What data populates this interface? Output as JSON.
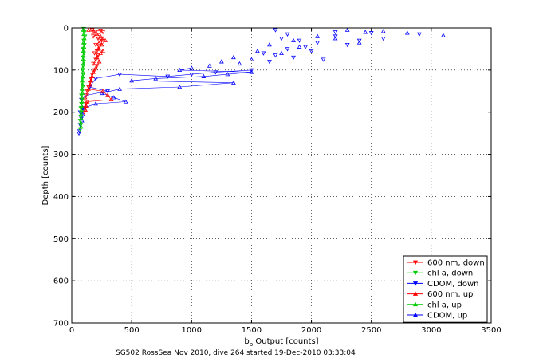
{
  "chart_data": {
    "type": "scatter",
    "xlabel": "b",
    "xlabel_sub": "b",
    "xlabel_rest": " Output [counts]",
    "ylabel": "Depth [counts]",
    "xlim": [
      0,
      3500
    ],
    "ylim": [
      0,
      700
    ],
    "y_reversed": true,
    "grid": true,
    "legend_position": "bottom-right",
    "x_ticks": [
      "0",
      "500",
      "1000",
      "1500",
      "2000",
      "2500",
      "3000",
      "3500"
    ],
    "y_ticks": [
      "0",
      "100",
      "200",
      "300",
      "400",
      "500",
      "600",
      "700"
    ],
    "footer": "SG502 RossSea Nov 2010, dive 264 started 19-Dec-2010 03:33:04",
    "series": [
      {
        "name": "600 nm, down",
        "color": "#ff0000",
        "marker": "triangle-down",
        "points": [
          [
            170,
            5
          ],
          [
            200,
            8
          ],
          [
            240,
            6
          ],
          [
            260,
            10
          ],
          [
            180,
            20
          ],
          [
            220,
            25
          ],
          [
            250,
            30
          ],
          [
            200,
            40
          ],
          [
            230,
            45
          ],
          [
            210,
            55
          ],
          [
            190,
            60
          ],
          [
            220,
            65
          ],
          [
            200,
            75
          ],
          [
            180,
            85
          ],
          [
            210,
            90
          ],
          [
            190,
            100
          ],
          [
            170,
            110
          ],
          [
            160,
            120
          ],
          [
            150,
            130
          ],
          [
            140,
            140
          ],
          [
            130,
            150
          ],
          [
            120,
            160
          ],
          [
            110,
            170
          ],
          [
            120,
            180
          ],
          [
            110,
            190
          ],
          [
            105,
            200
          ]
        ]
      },
      {
        "name": "chl a, down",
        "color": "#00cc00",
        "marker": "triangle-down",
        "points": [
          [
            100,
            2
          ],
          [
            105,
            10
          ],
          [
            110,
            20
          ],
          [
            100,
            30
          ],
          [
            105,
            40
          ],
          [
            95,
            50
          ],
          [
            100,
            60
          ],
          [
            95,
            70
          ],
          [
            100,
            80
          ],
          [
            95,
            90
          ],
          [
            90,
            100
          ],
          [
            95,
            110
          ],
          [
            90,
            120
          ],
          [
            85,
            130
          ],
          [
            90,
            140
          ],
          [
            85,
            150
          ],
          [
            80,
            160
          ],
          [
            85,
            170
          ],
          [
            80,
            180
          ],
          [
            75,
            190
          ],
          [
            80,
            200
          ],
          [
            75,
            210
          ],
          [
            70,
            220
          ],
          [
            75,
            230
          ],
          [
            70,
            240
          ]
        ]
      },
      {
        "name": "CDOM, down",
        "color": "#0000ff",
        "marker": "triangle-down",
        "points": [
          [
            1700,
            5
          ],
          [
            1800,
            15
          ],
          [
            2200,
            10
          ],
          [
            2500,
            12
          ],
          [
            2900,
            15
          ],
          [
            1750,
            25
          ],
          [
            1900,
            30
          ],
          [
            2050,
            35
          ],
          [
            2300,
            40
          ],
          [
            1800,
            50
          ],
          [
            2000,
            55
          ],
          [
            1600,
            60
          ],
          [
            1850,
            70
          ],
          [
            2100,
            75
          ],
          [
            1650,
            80
          ],
          [
            2200,
            20
          ],
          [
            2400,
            30
          ],
          [
            2600,
            25
          ],
          [
            1950,
            45
          ],
          [
            1700,
            65
          ],
          [
            1500,
            100
          ],
          [
            1200,
            105
          ],
          [
            1000,
            110
          ],
          [
            800,
            115
          ],
          [
            400,
            110
          ],
          [
            200,
            120
          ],
          [
            150,
            140
          ],
          [
            300,
            150
          ],
          [
            120,
            160
          ],
          [
            80,
            170
          ],
          [
            90,
            190
          ],
          [
            70,
            200
          ],
          [
            80,
            215
          ],
          [
            70,
            230
          ],
          [
            65,
            245
          ],
          [
            60,
            250
          ]
        ]
      },
      {
        "name": "600 nm, up",
        "color": "#ff0000",
        "marker": "triangle-up",
        "points": [
          [
            140,
            5
          ],
          [
            180,
            10
          ],
          [
            210,
            15
          ],
          [
            240,
            20
          ],
          [
            260,
            25
          ],
          [
            230,
            35
          ],
          [
            250,
            40
          ],
          [
            280,
            30
          ],
          [
            220,
            50
          ],
          [
            260,
            55
          ],
          [
            240,
            60
          ],
          [
            210,
            70
          ],
          [
            230,
            80
          ],
          [
            200,
            95
          ],
          [
            180,
            105
          ],
          [
            170,
            115
          ],
          [
            160,
            125
          ],
          [
            155,
            135
          ],
          [
            140,
            145
          ],
          [
            260,
            150
          ],
          [
            300,
            160
          ],
          [
            330,
            170
          ],
          [
            130,
            175
          ],
          [
            120,
            185
          ],
          [
            115,
            195
          ]
        ]
      },
      {
        "name": "chl a, up",
        "color": "#00cc00",
        "marker": "triangle-up",
        "points": [
          [
            95,
            5
          ],
          [
            100,
            15
          ],
          [
            105,
            25
          ],
          [
            98,
            35
          ],
          [
            102,
            45
          ],
          [
            96,
            55
          ],
          [
            98,
            65
          ],
          [
            94,
            75
          ],
          [
            96,
            85
          ],
          [
            92,
            95
          ],
          [
            94,
            105
          ],
          [
            90,
            115
          ],
          [
            88,
            125
          ],
          [
            92,
            135
          ],
          [
            86,
            145
          ],
          [
            88,
            155
          ],
          [
            84,
            165
          ],
          [
            86,
            175
          ],
          [
            82,
            185
          ],
          [
            80,
            195
          ],
          [
            78,
            205
          ],
          [
            80,
            215
          ],
          [
            76,
            225
          ],
          [
            78,
            235
          ]
        ]
      },
      {
        "name": "CDOM, up",
        "color": "#0000ff",
        "marker": "triangle-up",
        "points": [
          [
            2300,
            5
          ],
          [
            2450,
            10
          ],
          [
            2600,
            8
          ],
          [
            2800,
            12
          ],
          [
            3100,
            18
          ],
          [
            2050,
            20
          ],
          [
            2200,
            25
          ],
          [
            1850,
            30
          ],
          [
            2400,
            35
          ],
          [
            1650,
            40
          ],
          [
            1900,
            45
          ],
          [
            1550,
            55
          ],
          [
            1750,
            60
          ],
          [
            1350,
            70
          ],
          [
            1500,
            75
          ],
          [
            1250,
            80
          ],
          [
            1400,
            85
          ],
          [
            1150,
            90
          ],
          [
            1000,
            95
          ],
          [
            900,
            100
          ],
          [
            1500,
            105
          ],
          [
            1300,
            110
          ],
          [
            1100,
            115
          ],
          [
            700,
            120
          ],
          [
            500,
            125
          ],
          [
            1350,
            130
          ],
          [
            900,
            140
          ],
          [
            400,
            145
          ],
          [
            250,
            155
          ],
          [
            350,
            165
          ],
          [
            450,
            175
          ],
          [
            200,
            180
          ],
          [
            100,
            190
          ],
          [
            90,
            205
          ],
          [
            85,
            220
          ]
        ]
      }
    ]
  }
}
